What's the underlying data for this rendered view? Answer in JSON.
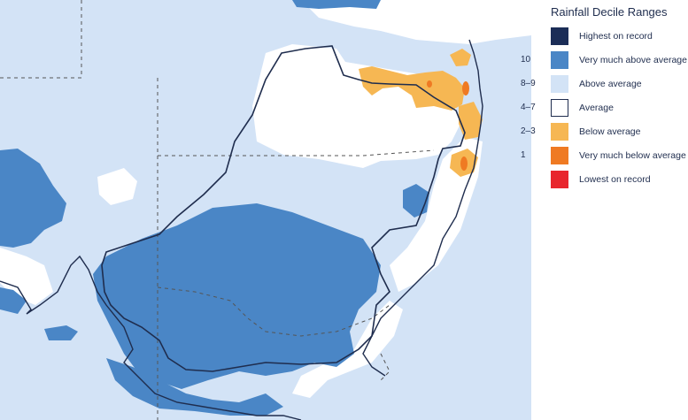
{
  "legend": {
    "title": "Rainfall Decile Ranges",
    "items": [
      {
        "code": "",
        "label": "Highest on record",
        "color": "#1b2d57"
      },
      {
        "code": "10",
        "label": "Very much above average",
        "color": "#4a86c6"
      },
      {
        "code": "8–9",
        "label": "Above average",
        "color": "#d3e3f6"
      },
      {
        "code": "4–7",
        "label": "Average",
        "color": "#ffffff"
      },
      {
        "code": "2–3",
        "label": "Below average",
        "color": "#f6b753"
      },
      {
        "code": "1",
        "label": "Very much below average",
        "color": "#ef7a23"
      },
      {
        "code": "",
        "label": "Lowest on record",
        "color": "#e8262d"
      }
    ]
  },
  "map": {
    "colors": {
      "above": "#d3e3f6",
      "very_above": "#4a86c6",
      "average": "#ffffff",
      "below": "#f6b753",
      "very_below": "#ef7a23",
      "border": "#1f2d4e",
      "boundary": "#555555"
    }
  }
}
